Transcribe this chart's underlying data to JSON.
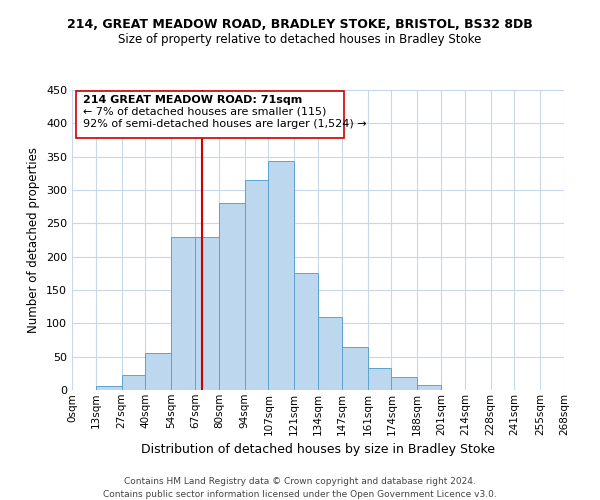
{
  "title_line1": "214, GREAT MEADOW ROAD, BRADLEY STOKE, BRISTOL, BS32 8DB",
  "title_line2": "Size of property relative to detached houses in Bradley Stoke",
  "xlabel": "Distribution of detached houses by size in Bradley Stoke",
  "ylabel": "Number of detached properties",
  "bin_labels": [
    "0sqm",
    "13sqm",
    "27sqm",
    "40sqm",
    "54sqm",
    "67sqm",
    "80sqm",
    "94sqm",
    "107sqm",
    "121sqm",
    "134sqm",
    "147sqm",
    "161sqm",
    "174sqm",
    "188sqm",
    "201sqm",
    "214sqm",
    "228sqm",
    "241sqm",
    "255sqm",
    "268sqm"
  ],
  "bin_edges": [
    0,
    13,
    27,
    40,
    54,
    67,
    80,
    94,
    107,
    121,
    134,
    147,
    161,
    174,
    188,
    201,
    214,
    228,
    241,
    255,
    268
  ],
  "bar_heights": [
    0,
    6,
    22,
    55,
    230,
    230,
    280,
    315,
    343,
    175,
    109,
    64,
    33,
    19,
    7,
    0,
    0,
    0,
    0,
    0
  ],
  "bar_color": "#bdd7ee",
  "bar_edgecolor": "#5ba3d0",
  "vline_x": 71,
  "vline_color": "#cc0000",
  "ylim": [
    0,
    450
  ],
  "yticks": [
    0,
    50,
    100,
    150,
    200,
    250,
    300,
    350,
    400,
    450
  ],
  "annotation_title": "214 GREAT MEADOW ROAD: 71sqm",
  "annotation_line1": "← 7% of detached houses are smaller (115)",
  "annotation_line2": "92% of semi-detached houses are larger (1,524) →",
  "footer_line1": "Contains HM Land Registry data © Crown copyright and database right 2024.",
  "footer_line2": "Contains public sector information licensed under the Open Government Licence v3.0.",
  "background_color": "#ffffff",
  "grid_color": "#c8d8e8"
}
